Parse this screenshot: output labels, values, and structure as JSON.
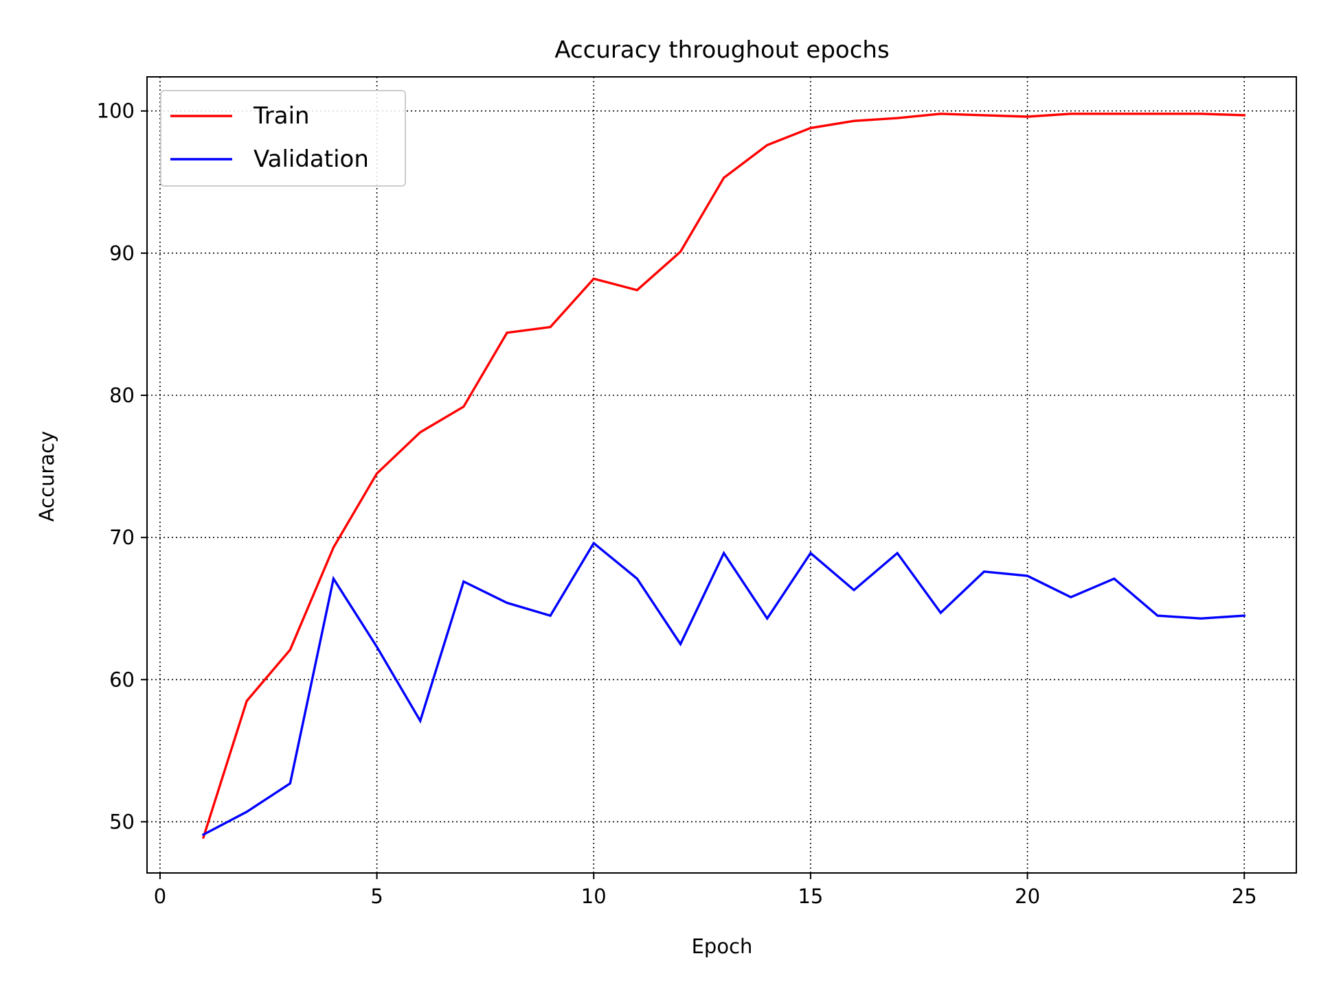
{
  "chart_data": {
    "type": "line",
    "title": "Accuracy throughout epochs",
    "xlabel": "Epoch",
    "ylabel": "Accuracy",
    "xlim": [
      -0.3,
      26.2
    ],
    "ylim": [
      46.4,
      102.4
    ],
    "xticks": [
      0,
      5,
      10,
      15,
      20,
      25
    ],
    "yticks": [
      50,
      60,
      70,
      80,
      90,
      100
    ],
    "xtick_labels": [
      "0",
      "5",
      "10",
      "15",
      "20",
      "25"
    ],
    "ytick_labels": [
      "50",
      "60",
      "70",
      "80",
      "90",
      "100"
    ],
    "grid": true,
    "grid_style": "dotted",
    "legend_position": "upper-left",
    "x": [
      1,
      2,
      3,
      4,
      5,
      6,
      7,
      8,
      9,
      10,
      11,
      12,
      13,
      14,
      15,
      16,
      17,
      18,
      19,
      20,
      21,
      22,
      23,
      24,
      25
    ],
    "series": [
      {
        "name": "Train",
        "color": "#ff0000",
        "values": [
          48.9,
          58.5,
          62.1,
          69.3,
          74.5,
          77.4,
          79.2,
          84.4,
          84.8,
          88.2,
          87.4,
          90.1,
          95.3,
          97.6,
          98.8,
          99.3,
          99.5,
          99.8,
          99.7,
          99.6,
          99.8,
          99.8,
          99.8,
          99.8,
          99.7
        ]
      },
      {
        "name": "Validation",
        "color": "#0000ff",
        "values": [
          49.1,
          50.7,
          52.7,
          67.1,
          62.3,
          57.1,
          66.9,
          65.4,
          64.5,
          69.6,
          67.1,
          62.5,
          68.9,
          64.3,
          68.9,
          66.3,
          68.9,
          64.7,
          67.6,
          67.3,
          65.8,
          67.1,
          64.5,
          64.3,
          64.5
        ]
      }
    ]
  }
}
